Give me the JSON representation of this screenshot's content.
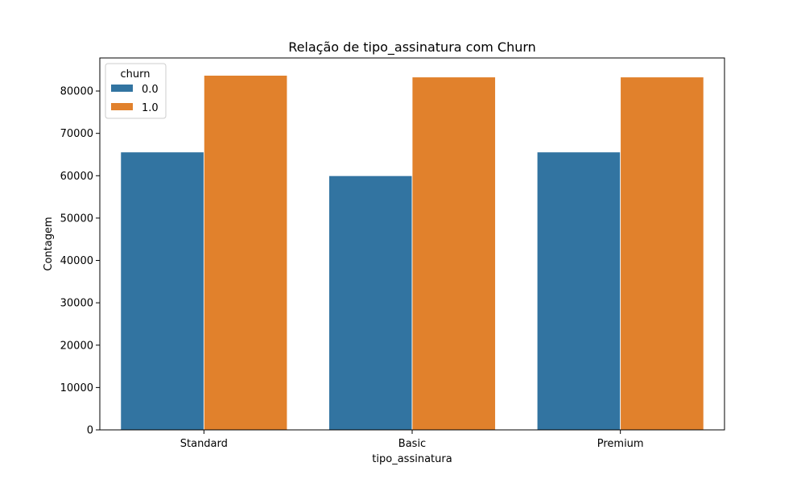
{
  "chart_data": {
    "type": "bar",
    "title": "Relação de tipo_assinatura com Churn",
    "xlabel": "tipo_assinatura",
    "ylabel": "Contagem",
    "categories": [
      "Standard",
      "Basic",
      "Premium"
    ],
    "series": [
      {
        "name": "0.0",
        "color": "#3274a1",
        "values": [
          65600,
          60000,
          65600
        ]
      },
      {
        "name": "1.0",
        "color": "#e1812c",
        "values": [
          83700,
          83300,
          83300
        ]
      }
    ],
    "ylim": [
      0,
      87800
    ],
    "yticks": [
      0,
      10000,
      20000,
      30000,
      40000,
      50000,
      60000,
      70000,
      80000
    ],
    "legend": {
      "title": "churn",
      "placement": "top-left"
    },
    "grid": false
  }
}
